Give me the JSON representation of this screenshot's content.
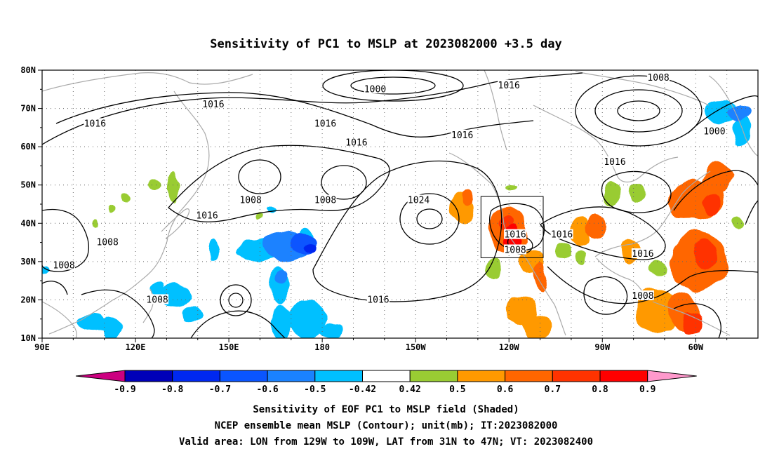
{
  "title": "Sensitivity of PC1 to MSLP at 2023082000 +3.5 day",
  "map": {
    "lat_labels": [
      "80N",
      "70N",
      "60N",
      "50N",
      "40N",
      "30N",
      "20N",
      "10N"
    ],
    "lon_labels": [
      "90E",
      "120E",
      "150E",
      "180",
      "150W",
      "120W",
      "90W",
      "60W"
    ],
    "lon_range_deg_east": [
      90,
      320
    ],
    "lat_range": [
      10,
      80
    ],
    "grid": "dotted",
    "verification_box": {
      "lon": [
        -129,
        -109
      ],
      "lat": [
        31,
        47
      ]
    },
    "contour_labels": [
      {
        "text": "1000",
        "lon": 197,
        "lat": 75
      },
      {
        "text": "1016",
        "lon": 145,
        "lat": 71
      },
      {
        "text": "1016",
        "lon": 107,
        "lat": 66
      },
      {
        "text": "1016",
        "lon": 181,
        "lat": 66
      },
      {
        "text": "1016",
        "lon": 191,
        "lat": 61
      },
      {
        "text": "1016",
        "lon": 240,
        "lat": 76
      },
      {
        "text": "1008",
        "lon": 288,
        "lat": 78
      },
      {
        "text": "1000",
        "lon": 306,
        "lat": 64
      },
      {
        "text": "1016",
        "lon": 225,
        "lat": 63
      },
      {
        "text": "1016",
        "lon": 274,
        "lat": 56
      },
      {
        "text": "1024",
        "lon": 211,
        "lat": 46
      },
      {
        "text": "1008",
        "lon": 157,
        "lat": 46
      },
      {
        "text": "1008",
        "lon": 181,
        "lat": 46
      },
      {
        "text": "1016",
        "lon": 143,
        "lat": 42
      },
      {
        "text": "1016",
        "lon": 242,
        "lat": 37
      },
      {
        "text": "1016",
        "lon": 257,
        "lat": 37
      },
      {
        "text": "1008",
        "lon": 242,
        "lat": 33
      },
      {
        "text": "1016",
        "lon": 283,
        "lat": 32
      },
      {
        "text": "1008",
        "lon": 111,
        "lat": 35
      },
      {
        "text": "1008",
        "lon": 97,
        "lat": 29
      },
      {
        "text": "1008",
        "lon": 127,
        "lat": 20
      },
      {
        "text": "1016",
        "lon": 198,
        "lat": 20
      },
      {
        "text": "1008",
        "lon": 283,
        "lat": 21
      }
    ],
    "positive_regions": [
      {
        "lon": 126,
        "lat": 50,
        "rlon": 2,
        "rlat": 1.5,
        "v": 0.45
      },
      {
        "lon": 117,
        "lat": 47,
        "rlon": 1.5,
        "rlat": 1,
        "v": 0.45
      },
      {
        "lon": 107,
        "lat": 40,
        "rlon": 1,
        "rlat": 1,
        "v": 0.45
      },
      {
        "lon": 132,
        "lat": 49,
        "rlon": 2,
        "rlat": 4,
        "v": 0.46
      },
      {
        "lon": 112,
        "lat": 44,
        "rlon": 1,
        "rlat": 0.8,
        "v": 0.45
      },
      {
        "lon": 160,
        "lat": 42,
        "rlon": 1,
        "rlat": 0.8,
        "v": 0.45
      },
      {
        "lon": 225,
        "lat": 44,
        "rlon": 4,
        "rlat": 4,
        "v": 0.5
      },
      {
        "lon": 227,
        "lat": 47,
        "rlon": 2,
        "rlat": 2,
        "v": 0.65
      },
      {
        "lon": 240,
        "lat": 38,
        "rlon": 6,
        "rlat": 6,
        "v": 0.6
      },
      {
        "lon": 241,
        "lat": 36,
        "rlon": 3,
        "rlat": 4,
        "v": 0.8
      },
      {
        "lon": 239,
        "lat": 40,
        "rlon": 2,
        "rlat": 2,
        "v": 0.72
      },
      {
        "lon": 241,
        "lat": 49,
        "rlon": 2,
        "rlat": 1,
        "v": 0.45
      },
      {
        "lon": 235,
        "lat": 28,
        "rlon": 3,
        "rlat": 3,
        "v": 0.47
      },
      {
        "lon": 247,
        "lat": 30,
        "rlon": 4,
        "rlat": 3,
        "v": 0.55
      },
      {
        "lon": 250,
        "lat": 26,
        "rlon": 2,
        "rlat": 4,
        "v": 0.62
      },
      {
        "lon": 244,
        "lat": 17,
        "rlon": 5,
        "rlat": 4,
        "v": 0.55
      },
      {
        "lon": 249,
        "lat": 13,
        "rlon": 5,
        "rlat": 3,
        "v": 0.5
      },
      {
        "lon": 257,
        "lat": 33,
        "rlon": 3,
        "rlat": 2,
        "v": 0.45
      },
      {
        "lon": 263,
        "lat": 38,
        "rlon": 3,
        "rlat": 4,
        "v": 0.55
      },
      {
        "lon": 268,
        "lat": 39,
        "rlon": 3,
        "rlat": 3,
        "v": 0.62
      },
      {
        "lon": 263,
        "lat": 31,
        "rlon": 2,
        "rlat": 2,
        "v": 0.46
      },
      {
        "lon": 273,
        "lat": 48,
        "rlon": 3,
        "rlat": 3,
        "v": 0.46
      },
      {
        "lon": 281,
        "lat": 48,
        "rlon": 3,
        "rlat": 2.5,
        "v": 0.48
      },
      {
        "lon": 279,
        "lat": 33,
        "rlon": 3,
        "rlat": 3,
        "v": 0.5
      },
      {
        "lon": 288,
        "lat": 28,
        "rlon": 3,
        "rlat": 2,
        "v": 0.48
      },
      {
        "lon": 300,
        "lat": 46,
        "rlon": 9,
        "rlat": 5,
        "v": 0.62
      },
      {
        "lon": 307,
        "lat": 52,
        "rlon": 5,
        "rlat": 4,
        "v": 0.6
      },
      {
        "lon": 305,
        "lat": 45,
        "rlon": 3,
        "rlat": 3,
        "v": 0.72
      },
      {
        "lon": 301,
        "lat": 30,
        "rlon": 9,
        "rlat": 8,
        "v": 0.6
      },
      {
        "lon": 303,
        "lat": 32,
        "rlon": 4,
        "rlat": 4,
        "v": 0.7
      },
      {
        "lon": 287,
        "lat": 17,
        "rlon": 7,
        "rlat": 6,
        "v": 0.55
      },
      {
        "lon": 296,
        "lat": 17,
        "rlon": 5,
        "rlat": 5,
        "v": 0.62
      },
      {
        "lon": 299,
        "lat": 14,
        "rlon": 3,
        "rlat": 3,
        "v": 0.7
      },
      {
        "lon": 313,
        "lat": 40,
        "rlon": 2,
        "rlat": 2,
        "v": 0.48
      }
    ],
    "negative_regions": [
      {
        "lon": 160,
        "lat": 33,
        "rlon": 7,
        "rlat": 3,
        "v": -0.5
      },
      {
        "lon": 168,
        "lat": 34,
        "rlon": 7,
        "rlat": 4,
        "v": -0.55
      },
      {
        "lon": 174,
        "lat": 35,
        "rlon": 4,
        "rlat": 2.5,
        "v": -0.68
      },
      {
        "lon": 176,
        "lat": 34,
        "rlon": 2,
        "rlat": 1,
        "v": -0.78
      },
      {
        "lon": 175,
        "lat": 37,
        "rlon": 2,
        "rlat": 2,
        "v": -0.5
      },
      {
        "lon": 166,
        "lat": 24,
        "rlon": 3,
        "rlat": 5,
        "v": -0.48
      },
      {
        "lon": 167,
        "lat": 14,
        "rlon": 3,
        "rlat": 5,
        "v": -0.5
      },
      {
        "lon": 167,
        "lat": 26,
        "rlon": 2,
        "rlat": 2,
        "v": -0.58
      },
      {
        "lon": 175,
        "lat": 15,
        "rlon": 6,
        "rlat": 5,
        "v": -0.47
      },
      {
        "lon": 183,
        "lat": 12,
        "rlon": 4,
        "rlat": 2,
        "v": -0.48
      },
      {
        "lon": 133,
        "lat": 21,
        "rlon": 5,
        "rlat": 3,
        "v": -0.47
      },
      {
        "lon": 138,
        "lat": 16,
        "rlon": 3,
        "rlat": 2,
        "v": -0.45
      },
      {
        "lon": 127,
        "lat": 23,
        "rlon": 2,
        "rlat": 2,
        "v": -0.46
      },
      {
        "lon": 145,
        "lat": 33,
        "rlon": 1.5,
        "rlat": 3,
        "v": -0.45
      },
      {
        "lon": 164,
        "lat": 44,
        "rlon": 1.5,
        "rlat": 1,
        "v": -0.45
      },
      {
        "lon": 106,
        "lat": 14,
        "rlon": 5,
        "rlat": 2,
        "v": -0.5
      },
      {
        "lon": 112,
        "lat": 13,
        "rlon": 3,
        "rlat": 3,
        "v": -0.47
      },
      {
        "lon": 91,
        "lat": 28,
        "rlon": 1.5,
        "rlat": 1,
        "v": -0.45
      },
      {
        "lon": 308,
        "lat": 69,
        "rlon": 5,
        "rlat": 3,
        "v": -0.5
      },
      {
        "lon": 314,
        "lat": 69,
        "rlon": 4,
        "rlat": 2,
        "v": -0.6
      },
      {
        "lon": 315,
        "lat": 64,
        "rlon": 3,
        "rlat": 4,
        "v": -0.48
      }
    ]
  },
  "colorbar": {
    "labels": [
      "-0.9",
      "-0.8",
      "-0.7",
      "-0.6",
      "-0.5",
      "-0.42",
      "0.42",
      "0.5",
      "0.6",
      "0.7",
      "0.8",
      "0.9"
    ],
    "colors": [
      "#0000b8",
      "#0028f0",
      "#0a55ff",
      "#1a82ff",
      "#00c0ff",
      "#ffffff",
      "#99cc33",
      "#ff9900",
      "#ff6600",
      "#ff3300",
      "#ff0000"
    ],
    "below_color": "#cc0080",
    "above_color": "#ff99cc"
  },
  "captions": [
    "Sensitivity of EOF PC1 to MSLP field (Shaded)",
    "NCEP ensemble mean MSLP (Contour); unit(mb); IT:2023082000",
    "Valid area: LON from 129W to 109W, LAT from 31N to 47N; VT: 2023082400"
  ]
}
